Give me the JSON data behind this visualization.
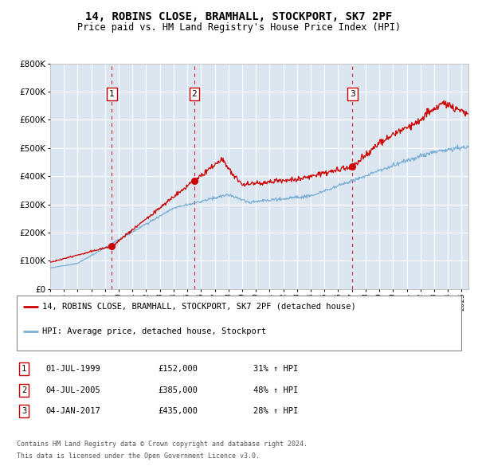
{
  "title": "14, ROBINS CLOSE, BRAMHALL, STOCKPORT, SK7 2PF",
  "subtitle": "Price paid vs. HM Land Registry's House Price Index (HPI)",
  "ylim": [
    0,
    800000
  ],
  "yticks": [
    0,
    100000,
    200000,
    300000,
    400000,
    500000,
    600000,
    700000,
    800000
  ],
  "background_color": "#dce6f1",
  "grid_color": "#ffffff",
  "sale_color": "#cc0000",
  "hpi_color": "#7bafd4",
  "sale_label": "14, ROBINS CLOSE, BRAMHALL, STOCKPORT, SK7 2PF (detached house)",
  "hpi_label": "HPI: Average price, detached house, Stockport",
  "transactions": [
    {
      "num": 1,
      "date_str": "01-JUL-1999",
      "price": 152000,
      "pct": "31%",
      "dir": "↑",
      "year": 1999.5
    },
    {
      "num": 2,
      "date_str": "04-JUL-2005",
      "price": 385000,
      "pct": "48%",
      "dir": "↑",
      "year": 2005.5
    },
    {
      "num": 3,
      "date_str": "04-JAN-2017",
      "price": 435000,
      "pct": "28%",
      "dir": "↑",
      "year": 2017.04
    }
  ],
  "footer_line1": "Contains HM Land Registry data © Crown copyright and database right 2024.",
  "footer_line2": "This data is licensed under the Open Government Licence v3.0.",
  "xmin": 1995.0,
  "xmax": 2025.5
}
